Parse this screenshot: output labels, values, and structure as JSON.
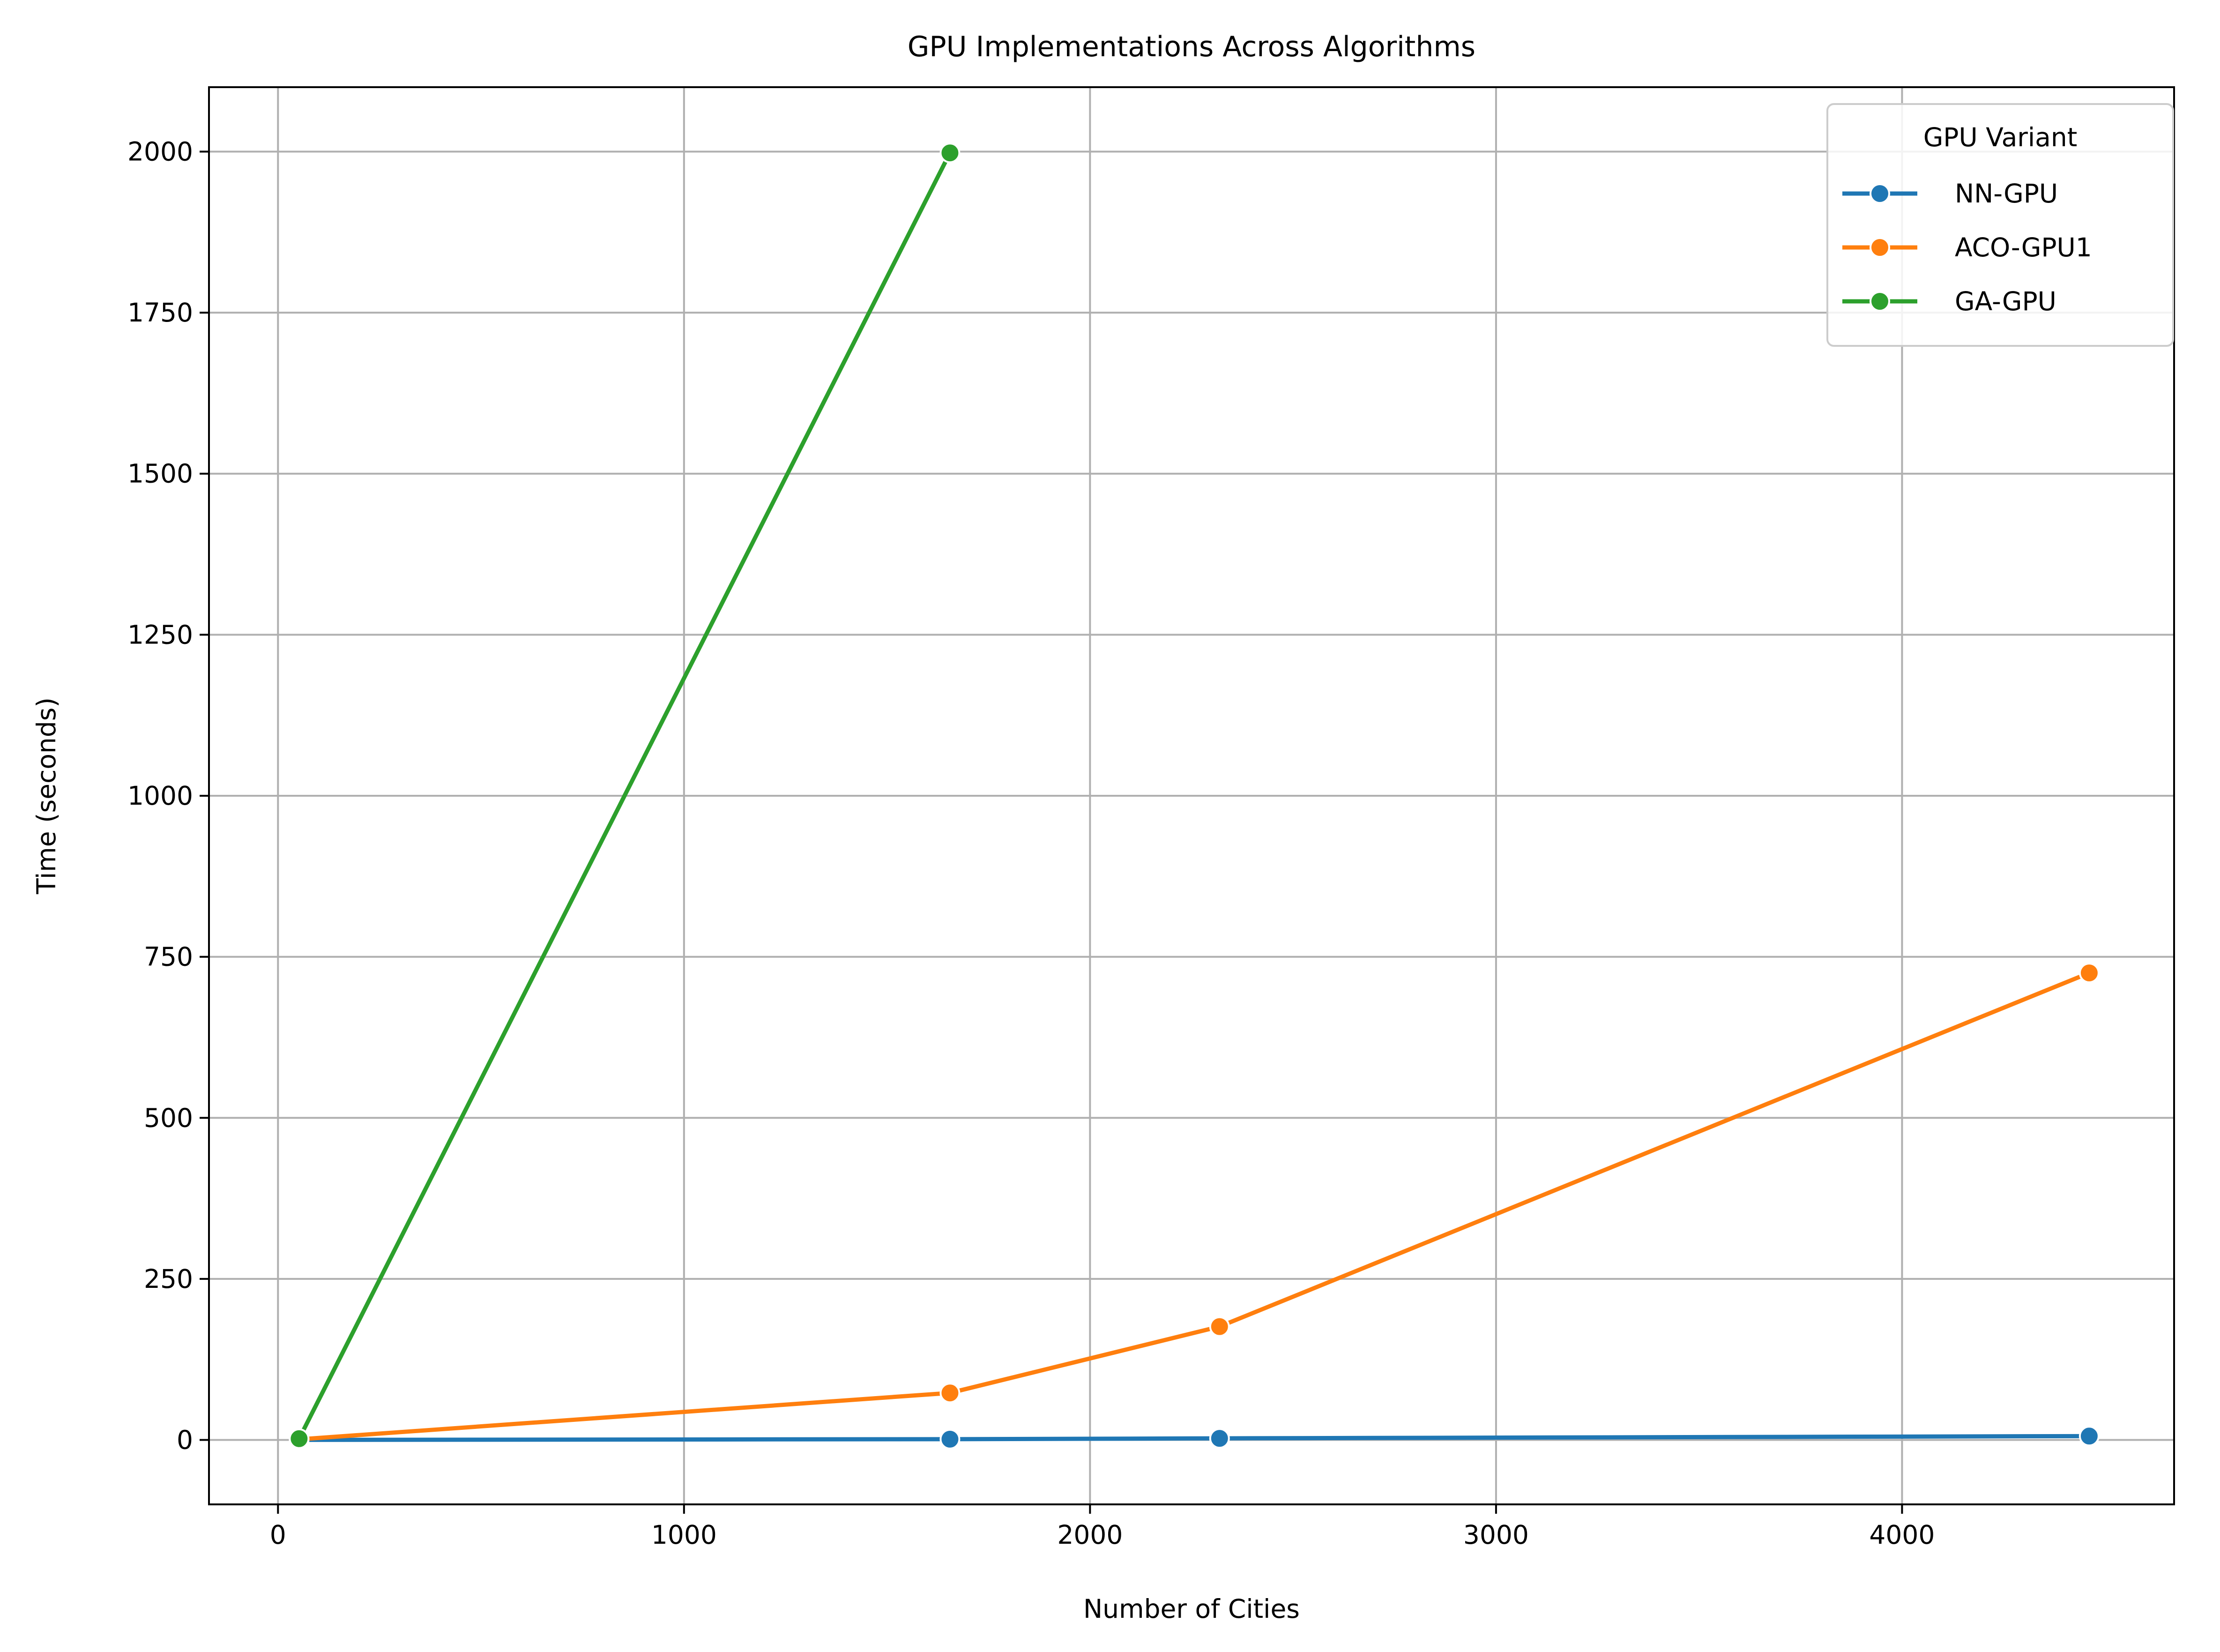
{
  "chart_data": {
    "type": "line",
    "title": "GPU Implementations Across Algorithms",
    "xlabel": "Number of Cities",
    "ylabel": "Time (seconds)",
    "xlim": [
      -170,
      4670
    ],
    "ylim": [
      -100,
      2100
    ],
    "xticks": [
      0,
      1000,
      2000,
      3000,
      4000
    ],
    "yticks": [
      0,
      250,
      500,
      750,
      1000,
      1250,
      1500,
      1750,
      2000
    ],
    "grid": true,
    "legend": {
      "title": "GPU Variant",
      "placement": "top-right"
    },
    "series": [
      {
        "name": "NN-GPU",
        "color": "#1f77b4",
        "x": [
          52,
          1655,
          2319,
          4461
        ],
        "y": [
          0.1,
          1.2,
          2.5,
          6
        ]
      },
      {
        "name": "ACO-GPU1",
        "color": "#ff7f0e",
        "x": [
          52,
          1655,
          2319,
          4461
        ],
        "y": [
          1,
          73,
          176,
          725
        ]
      },
      {
        "name": "GA-GPU",
        "color": "#2ca02c",
        "x": [
          52,
          1655
        ],
        "y": [
          2,
          1998
        ]
      }
    ]
  }
}
